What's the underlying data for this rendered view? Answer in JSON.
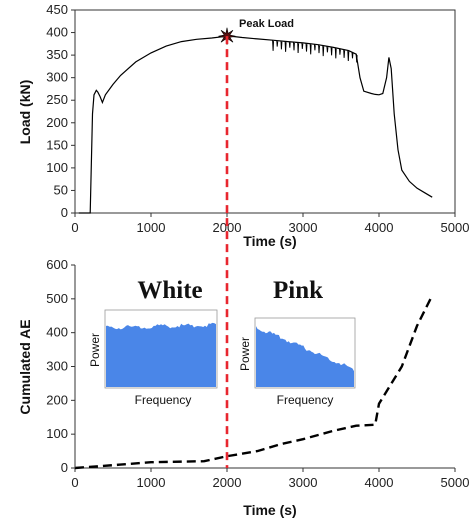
{
  "chart_data": [
    {
      "type": "line",
      "title": "",
      "xlabel": "Time (s)",
      "ylabel": "Load (kN)",
      "xlim": [
        0,
        5000
      ],
      "ylim": [
        0,
        450
      ],
      "xticks": [
        0,
        1000,
        2000,
        3000,
        4000,
        5000
      ],
      "yticks": [
        0,
        50,
        100,
        150,
        200,
        250,
        300,
        350,
        400,
        450
      ],
      "grid": false,
      "annotations": [
        {
          "text": "Peak Load",
          "x": 2000,
          "y": 392
        }
      ],
      "series": [
        {
          "color": "#000000",
          "x": [
            50,
            200,
            230,
            250,
            280,
            300,
            330,
            360,
            400,
            500,
            600,
            800,
            1000,
            1200,
            1400,
            1600,
            1800,
            2000,
            2100,
            2200,
            2400,
            2600,
            2800,
            3000,
            3200,
            3400,
            3600,
            3700,
            3750,
            3800,
            3900,
            3950,
            4000,
            4050,
            4100,
            4130,
            4160,
            4200,
            4250,
            4300,
            4400,
            4500,
            4600,
            4700
          ],
          "y": [
            0,
            0,
            220,
            262,
            272,
            268,
            258,
            245,
            262,
            285,
            305,
            335,
            355,
            370,
            380,
            385,
            388,
            392,
            391,
            389,
            386,
            383,
            380,
            377,
            373,
            367,
            360,
            352,
            300,
            270,
            265,
            263,
            262,
            265,
            300,
            345,
            320,
            220,
            140,
            95,
            70,
            55,
            45,
            35
          ]
        }
      ],
      "oscillation_range_s": [
        2600,
        3750
      ]
    },
    {
      "type": "line",
      "title": "",
      "xlabel": "Time (s)",
      "ylabel": "Cumulated AE",
      "xlim": [
        0,
        5000
      ],
      "ylim": [
        0,
        600
      ],
      "xticks": [
        0,
        1000,
        2000,
        3000,
        4000,
        5000
      ],
      "yticks": [
        0,
        100,
        200,
        300,
        400,
        500,
        600
      ],
      "grid": false,
      "annotations": [
        {
          "text": "White"
        },
        {
          "text": "Pink"
        }
      ],
      "series": [
        {
          "color": "#000000",
          "style": "dashed",
          "x": [
            0,
            300,
            600,
            1000,
            1700,
            2000,
            2400,
            2700,
            3000,
            3400,
            3700,
            3950,
            4000,
            4300,
            4500,
            4700
          ],
          "y": [
            0,
            5,
            10,
            17,
            20,
            35,
            50,
            70,
            85,
            110,
            125,
            128,
            190,
            300,
            420,
            510
          ]
        }
      ],
      "insets": [
        {
          "name": "White",
          "xlabel": "Frequency",
          "ylabel": "Power",
          "color": "#4a86e8",
          "start": 0.78,
          "end": 0.82
        },
        {
          "name": "Pink",
          "xlabel": "Frequency",
          "ylabel": "Power",
          "color": "#4a86e8",
          "start": 0.88,
          "end": 0.26
        }
      ]
    }
  ],
  "divider": {
    "x": 2000,
    "color": "#e8262f"
  }
}
